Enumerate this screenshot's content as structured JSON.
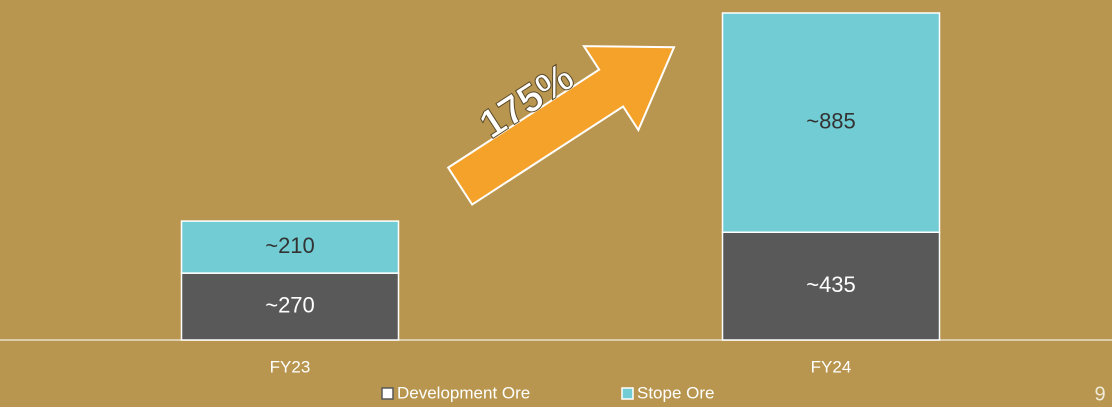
{
  "chart_data": {
    "type": "stacked_bar",
    "categories": [
      "FY23",
      "FY24"
    ],
    "series": [
      {
        "name": "Development Ore",
        "color": "#595959",
        "values": [
          270,
          435
        ],
        "value_labels": [
          "~270",
          "~435"
        ]
      },
      {
        "name": "Stope Ore",
        "color": "#72ccd4",
        "values": [
          210,
          885
        ],
        "value_labels": [
          "~210",
          "~885"
        ]
      }
    ],
    "annotation": "175%",
    "page_number": "9"
  }
}
